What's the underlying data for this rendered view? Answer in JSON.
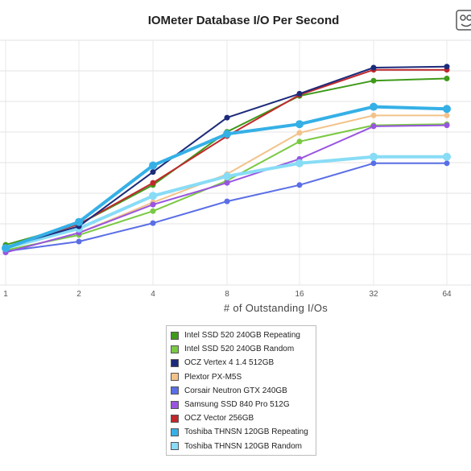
{
  "chart_data": {
    "type": "line",
    "title": "IOMeter Database I/O Per Second",
    "xlabel": "# of Outstanding I/Os",
    "ylabel": "",
    "categories": [
      "1",
      "2",
      "4",
      "8",
      "16",
      "32",
      "64"
    ],
    "ylim": [
      0,
      100
    ],
    "grid": true,
    "legend_position": "bottom",
    "series": [
      {
        "name": "Intel SSD 520 240GB Repeating",
        "color": "#3f9a1a",
        "values": [
          18.5,
          28,
          46,
          70.5,
          87,
          94,
          95
        ],
        "width": 2
      },
      {
        "name": "Intel SSD 520 240GB Random",
        "color": "#7ac943",
        "values": [
          16,
          23,
          34,
          48,
          66,
          73.5,
          74
        ],
        "width": 2
      },
      {
        "name": "OCZ Vertex 4 1.4 512GB",
        "color": "#1c2a7a",
        "values": [
          17.5,
          27,
          52,
          77,
          88,
          100,
          100.5
        ],
        "width": 2
      },
      {
        "name": "Plextor PX-M5S",
        "color": "#f2c28a",
        "values": [
          15,
          24,
          38,
          51,
          70,
          78,
          78
        ],
        "width": 2
      },
      {
        "name": "Corsair Neutron GTX 240GB",
        "color": "#5a6ee6",
        "values": [
          15.5,
          20,
          28.5,
          38.5,
          46,
          56,
          56
        ],
        "width": 2
      },
      {
        "name": "Samsung SSD 840 Pro 512G",
        "color": "#9955e0",
        "values": [
          15,
          24,
          37,
          47,
          58,
          73,
          73.5
        ],
        "width": 2
      },
      {
        "name": "OCZ Vector 256GB",
        "color": "#c0282b",
        "values": [
          17.5,
          28,
          47,
          68.5,
          87.5,
          99,
          99
        ],
        "width": 2
      },
      {
        "name": "Toshiba THNSN 120GB Repeating",
        "color": "#35b0e6",
        "values": [
          17,
          29,
          55,
          69.5,
          74,
          82,
          81
        ],
        "width": 4
      },
      {
        "name": "Toshiba THNSN 120GB Random",
        "color": "#88dcf6",
        "values": [
          17,
          26,
          41,
          50,
          56,
          59,
          59
        ],
        "width": 4
      }
    ]
  }
}
